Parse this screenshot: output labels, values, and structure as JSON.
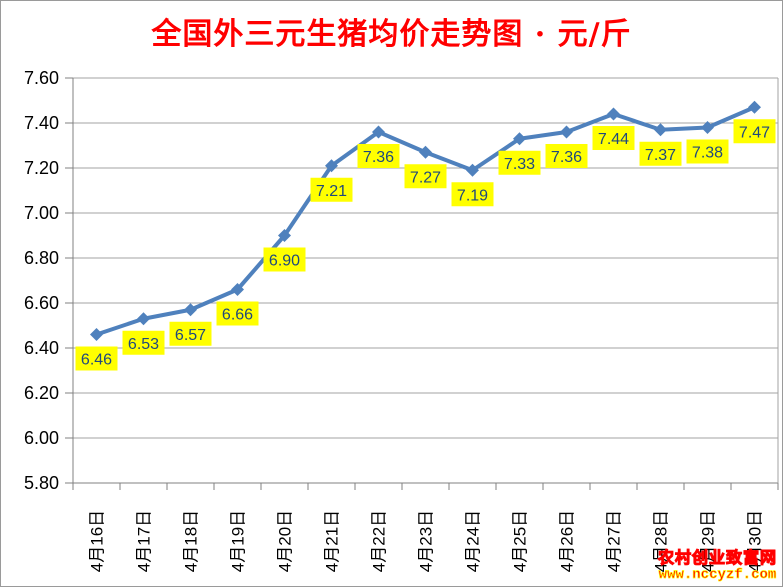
{
  "title": "全国外三元生猪均价走势图 · 元/斤",
  "watermark": {
    "site_name": "农村创业致富网",
    "site_url": "www.nccyzf.com"
  },
  "chart_data": {
    "type": "line",
    "title": "全国外三元生猪均价走势图 · 元/斤",
    "categories": [
      "4月16日",
      "4月17日",
      "4月18日",
      "4月19日",
      "4月20日",
      "4月21日",
      "4月22日",
      "4月23日",
      "4月24日",
      "4月25日",
      "4月26日",
      "4月27日",
      "4月28日",
      "4月29日",
      "4月30日"
    ],
    "values": [
      6.46,
      6.53,
      6.57,
      6.66,
      6.9,
      7.21,
      7.36,
      7.27,
      7.19,
      7.33,
      7.36,
      7.44,
      7.37,
      7.38,
      7.47
    ],
    "point_labels": [
      "6.46",
      "6.53",
      "6.57",
      "6.66",
      "6.90",
      "7.21",
      "7.36",
      "7.27",
      "7.19",
      "7.33",
      "7.36",
      "7.44",
      "7.37",
      "7.38",
      "7.47"
    ],
    "xlabel": "",
    "ylabel": "",
    "ylim": [
      5.8,
      7.6
    ],
    "ytick_step": 0.2,
    "yticks": [
      "7.60",
      "7.40",
      "7.20",
      "7.00",
      "6.80",
      "6.60",
      "6.40",
      "6.20",
      "6.00",
      "5.80"
    ],
    "grid": true,
    "legend_position": "none",
    "colors": {
      "line": "#4f81bd",
      "marker": "#4f81bd",
      "gridline": "#a3a3a3",
      "axis": "#808080",
      "tick_label": "#000000",
      "data_label_bg": "#ffff00",
      "data_label_text": "#1f497d",
      "title": "#ff0000"
    }
  }
}
